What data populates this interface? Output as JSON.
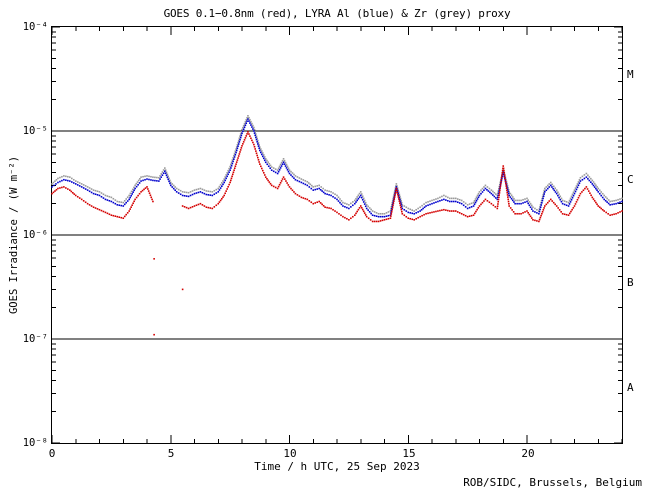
{
  "window": {
    "background": "#ffffff"
  },
  "footer": {
    "credit": "ROB/SIDC, Brussels, Belgium"
  },
  "colors": {
    "goes_red": "#d40000",
    "lyra_al_blue": "#0000cc",
    "lyra_zr_grey": "#9a9a9a",
    "axis": "#000000",
    "background": "#ffffff"
  },
  "chart_data": {
    "type": "scatter",
    "title": "GOES 0.1−0.8nm (red), LYRA Al (blue) & Zr (grey) proxy",
    "xlabel": "Time / h UTC, 25 Sep 2023",
    "ylabel": "GOES Irradiance / (W m⁻²)",
    "xlim": [
      0,
      24
    ],
    "ylim": [
      1e-08,
      0.0001
    ],
    "y_scale": "log",
    "grid": false,
    "x_tick_labels": [
      "0",
      "5",
      "10",
      "15",
      "20"
    ],
    "x_major_ticks": [
      0,
      5,
      10,
      15,
      20
    ],
    "x_minor_tick_step": 1,
    "y_tick_labels": [
      "10⁻⁴",
      "10⁻⁵",
      "10⁻⁶",
      "10⁻⁷",
      "10⁻⁸"
    ],
    "y_tick_exponents": [
      -4,
      -5,
      -6,
      -7,
      -8
    ],
    "flare_class_labels": [
      "M",
      "C",
      "B",
      "A"
    ],
    "hline_values": [
      1e-05,
      1e-06,
      1e-07
    ],
    "sampling": {
      "x_start": 0,
      "x_step": 0.25,
      "value_unit": 1e-06
    },
    "series": [
      {
        "name": "LYRA Zr proxy",
        "color": "#9a9a9a",
        "values": [
          3.1,
          3.5,
          3.7,
          3.6,
          3.3,
          3.1,
          2.9,
          2.7,
          2.6,
          2.4,
          2.3,
          2.1,
          2.05,
          2.4,
          3.0,
          3.6,
          3.7,
          3.6,
          3.55,
          4.4,
          3.2,
          2.8,
          2.6,
          2.55,
          2.7,
          2.8,
          2.65,
          2.6,
          2.8,
          3.45,
          4.55,
          6.7,
          10.3,
          14.0,
          10.8,
          7.0,
          5.4,
          4.5,
          4.2,
          5.4,
          4.2,
          3.7,
          3.45,
          3.25,
          2.9,
          3.0,
          2.7,
          2.6,
          2.4,
          2.05,
          1.95,
          2.15,
          2.6,
          1.95,
          1.7,
          1.6,
          1.6,
          1.7,
          3.1,
          1.95,
          1.8,
          1.7,
          1.85,
          2.05,
          2.15,
          2.25,
          2.4,
          2.25,
          2.25,
          2.15,
          1.95,
          2.05,
          2.6,
          3.0,
          2.7,
          2.4,
          4.3,
          2.6,
          2.15,
          2.15,
          2.25,
          1.85,
          1.7,
          2.8,
          3.2,
          2.7,
          2.15,
          2.05,
          2.7,
          3.55,
          3.9,
          3.35,
          2.8,
          2.4,
          2.1,
          2.15,
          2.25
        ]
      },
      {
        "name": "LYRA Al proxy",
        "color": "#0000cc",
        "values": [
          2.9,
          3.2,
          3.4,
          3.3,
          3.1,
          2.9,
          2.7,
          2.5,
          2.4,
          2.2,
          2.1,
          1.95,
          1.9,
          2.2,
          2.8,
          3.3,
          3.45,
          3.35,
          3.3,
          4.1,
          3.0,
          2.6,
          2.4,
          2.35,
          2.5,
          2.6,
          2.45,
          2.4,
          2.6,
          3.2,
          4.2,
          6.2,
          9.5,
          13.0,
          10.0,
          6.5,
          5.0,
          4.2,
          3.9,
          5.0,
          3.9,
          3.4,
          3.2,
          3.0,
          2.7,
          2.8,
          2.5,
          2.4,
          2.2,
          1.9,
          1.8,
          2.0,
          2.4,
          1.8,
          1.55,
          1.5,
          1.5,
          1.55,
          2.9,
          1.8,
          1.65,
          1.6,
          1.7,
          1.9,
          2.0,
          2.1,
          2.2,
          2.1,
          2.1,
          2.0,
          1.8,
          1.9,
          2.4,
          2.8,
          2.5,
          2.2,
          4.0,
          2.4,
          2.0,
          2.0,
          2.1,
          1.7,
          1.6,
          2.6,
          3.0,
          2.5,
          2.0,
          1.9,
          2.5,
          3.3,
          3.6,
          3.1,
          2.6,
          2.2,
          1.95,
          2.0,
          2.1
        ]
      },
      {
        "name": "GOES 0.1-0.8nm",
        "color": "#d40000",
        "values": [
          2.5,
          2.8,
          2.9,
          2.7,
          2.4,
          2.2,
          2.0,
          1.85,
          1.75,
          1.65,
          1.55,
          1.5,
          1.45,
          1.7,
          2.2,
          2.6,
          2.9,
          2.1,
          null,
          null,
          null,
          null,
          1.9,
          1.8,
          1.9,
          2.0,
          1.85,
          1.8,
          2.0,
          2.4,
          3.2,
          4.8,
          7.2,
          9.8,
          7.4,
          4.8,
          3.6,
          3.0,
          2.8,
          3.6,
          2.9,
          2.5,
          2.3,
          2.2,
          2.0,
          2.1,
          1.85,
          1.8,
          1.65,
          1.5,
          1.4,
          1.55,
          1.9,
          1.5,
          1.35,
          1.35,
          1.4,
          1.45,
          2.8,
          1.6,
          1.45,
          1.4,
          1.5,
          1.6,
          1.65,
          1.7,
          1.75,
          1.7,
          1.7,
          1.6,
          1.5,
          1.55,
          1.9,
          2.2,
          2.0,
          1.8,
          4.6,
          1.9,
          1.6,
          1.6,
          1.7,
          1.4,
          1.35,
          1.9,
          2.2,
          1.9,
          1.6,
          1.55,
          1.9,
          2.5,
          2.9,
          2.3,
          1.9,
          1.7,
          1.55,
          1.6,
          1.7
        ]
      }
    ],
    "outlier_points": {
      "series": "GOES 0.1-0.8nm",
      "color": "#d40000",
      "points_h_value": [
        [
          4.3,
          5.9e-07
        ],
        [
          5.5,
          3e-07
        ],
        [
          4.3,
          1.1e-07
        ]
      ]
    }
  }
}
